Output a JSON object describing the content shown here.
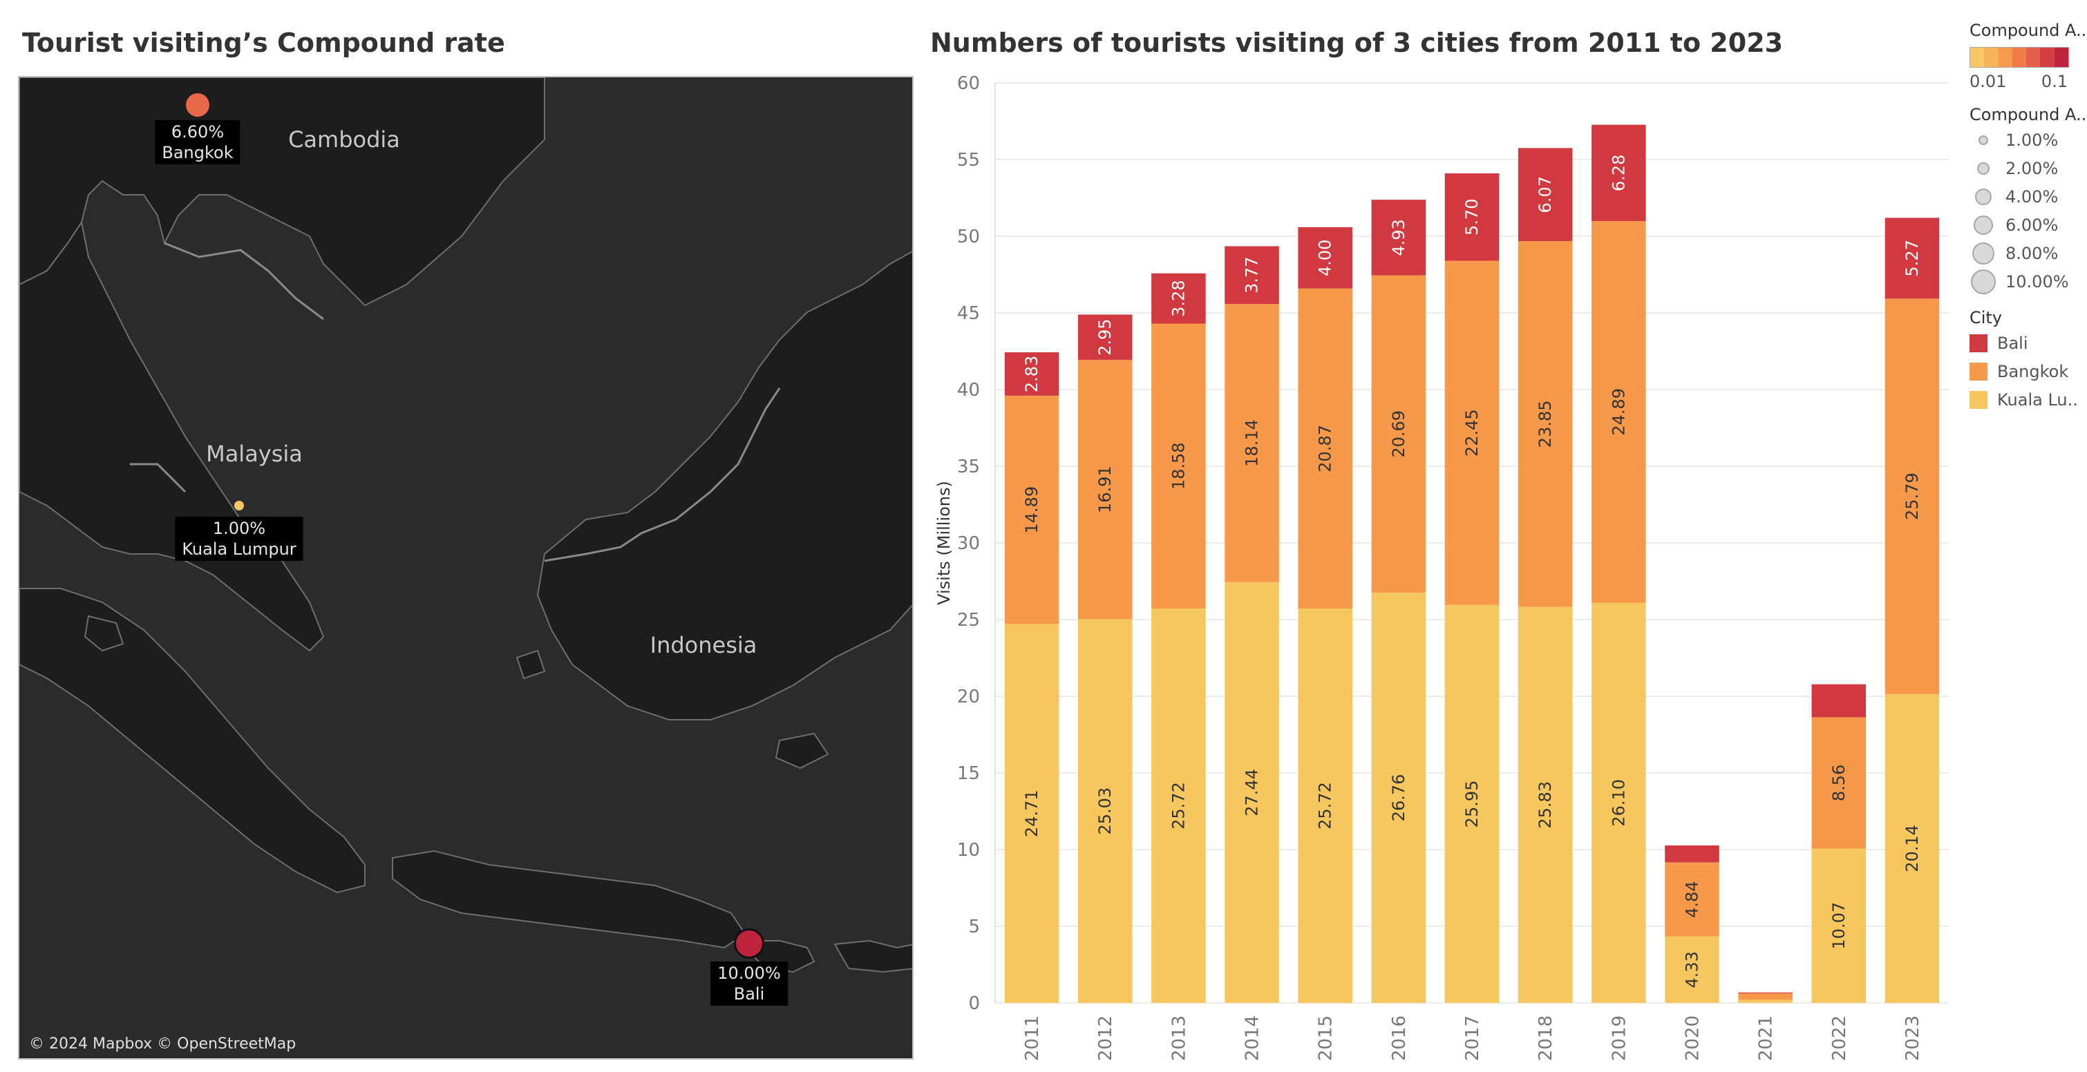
{
  "map": {
    "title": "Tourist visiting’s Compound rate",
    "attribution": "© 2024 Mapbox © OpenStreetMap",
    "places": [
      {
        "name": "Cambodia"
      },
      {
        "name": "Malaysia"
      },
      {
        "name": "Indonesia"
      }
    ],
    "markers": [
      {
        "city": "Bangkok",
        "rate_label": "6.60%",
        "rate": 0.066,
        "color": "#e8684a"
      },
      {
        "city": "Kuala Lumpur",
        "rate_label": "1.00%",
        "rate": 0.01,
        "color": "#f5c765"
      },
      {
        "city": "Bali",
        "rate_label": "10.00%",
        "rate": 0.1,
        "color": "#c0233c"
      }
    ]
  },
  "legend": {
    "color_title": "Compound A..",
    "color_ramp": [
      "#f5c765",
      "#f7b25a",
      "#f59a4f",
      "#ee7d4a",
      "#e35f48",
      "#d43f45",
      "#c0233c"
    ],
    "color_min": "0.01",
    "color_max": "0.1",
    "size_title": "Compound A..",
    "size_items": [
      "1.00%",
      "2.00%",
      "4.00%",
      "6.00%",
      "8.00%",
      "10.00%"
    ],
    "city_title": "City",
    "cities": [
      {
        "name": "Bali",
        "color": "#d0393f"
      },
      {
        "name": "Bangkok",
        "color": "#f7994a"
      },
      {
        "name": "Kuala Lu..",
        "color": "#f5c75e"
      }
    ]
  },
  "chart_data": {
    "type": "bar",
    "stacked": true,
    "title": "Numbers of tourists visiting of 3 cities from 2011 to 2023",
    "ylabel": "Visits (Millions)",
    "xlabel": "",
    "ylim": [
      0,
      60
    ],
    "yticks": [
      0,
      5,
      10,
      15,
      20,
      25,
      30,
      35,
      40,
      45,
      50,
      55,
      60
    ],
    "grid": true,
    "categories": [
      "2011",
      "2012",
      "2013",
      "2014",
      "2015",
      "2016",
      "2017",
      "2018",
      "2019",
      "2020",
      "2021",
      "2022",
      "2023"
    ],
    "series": [
      {
        "name": "Kuala Lumpur",
        "color": "#f5c75e",
        "values": [
          24.71,
          25.03,
          25.72,
          27.44,
          25.72,
          26.76,
          25.95,
          25.83,
          26.1,
          4.33,
          0.2,
          10.07,
          20.14
        ],
        "labels": [
          "24.71",
          "25.03",
          "25.72",
          "27.44",
          "25.72",
          "26.76",
          "25.95",
          "25.83",
          "26.10",
          "4.33",
          "",
          "10.07",
          "20.14"
        ]
      },
      {
        "name": "Bangkok",
        "color": "#f7994a",
        "values": [
          14.89,
          16.91,
          18.58,
          18.14,
          20.87,
          20.69,
          22.45,
          23.85,
          24.89,
          4.84,
          0.43,
          8.56,
          25.79
        ],
        "labels": [
          "14.89",
          "16.91",
          "18.58",
          "18.14",
          "20.87",
          "20.69",
          "22.45",
          "23.85",
          "24.89",
          "4.84",
          "",
          "8.56",
          "25.79"
        ]
      },
      {
        "name": "Bali",
        "color": "#d0393f",
        "values": [
          2.83,
          2.95,
          3.28,
          3.77,
          4.0,
          4.93,
          5.7,
          6.07,
          6.28,
          1.1,
          0.05,
          2.15,
          5.27
        ],
        "labels": [
          "2.83",
          "2.95",
          "3.28",
          "3.77",
          "4.00",
          "4.93",
          "5.70",
          "6.07",
          "6.28",
          "",
          "",
          "",
          "5.27"
        ]
      }
    ]
  }
}
